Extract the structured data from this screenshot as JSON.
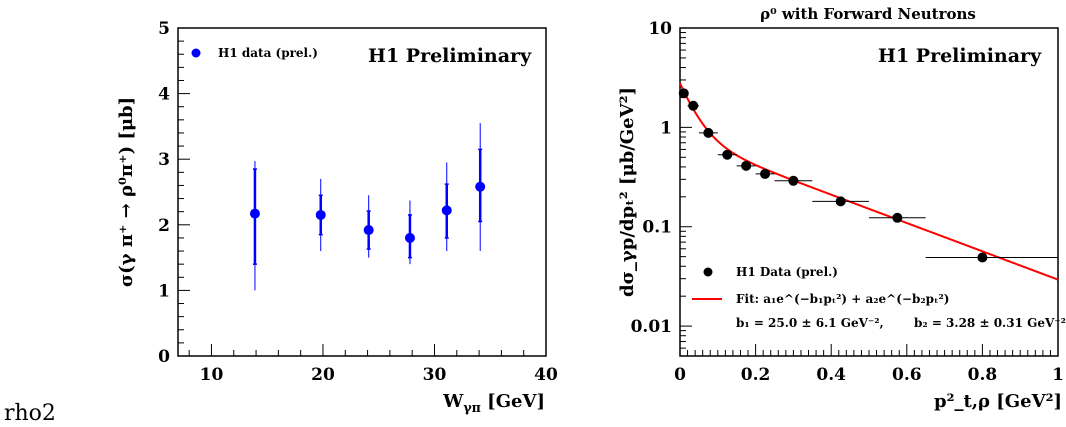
{
  "caption": "rho2",
  "charts": {
    "left": {
      "prelim_label": "H1 Preliminary",
      "legend_label": "H1 data (prel.)",
      "ylabel": "σ(γ π⁺ → ρ⁰π⁺) [μb]",
      "xlabel_main": "W",
      "xlabel_sub": "γπ",
      "xlabel_unit": " [GeV]",
      "xticks": [
        "10",
        "20",
        "30",
        "40"
      ],
      "yticks": [
        "0",
        "1",
        "2",
        "3",
        "4",
        "5"
      ],
      "marker_color": "#0000ff"
    },
    "right": {
      "title": "ρ⁰ with Forward Neutrons",
      "prelim_label": "H1 Preliminary",
      "legend_data_label": "H1 Data (prel.)",
      "legend_fit_label": "Fit: a₁e^(−b₁pₜ²) + a₂e^(−b₂pₜ²)",
      "fit_params_b1": "b₁ = 25.0 ± 6.1 GeV⁻²,",
      "fit_params_b2": "b₂ = 3.28 ± 0.31 GeV⁻²",
      "ylabel": "dσ_γp/dpₜ² [μb/GeV²]",
      "xlabel": "p²_t,ρ [GeV²]",
      "xticks": [
        "0",
        "0.2",
        "0.4",
        "0.6",
        "0.8",
        "1"
      ],
      "yticks": [
        "0.01",
        "0.1",
        "1",
        "10"
      ],
      "fit_color": "#ff0000"
    }
  },
  "chart_data": [
    {
      "type": "scatter",
      "xlim": [
        7,
        40
      ],
      "ylim": [
        0,
        5
      ],
      "points": [
        {
          "x": 13.9,
          "y": 2.17,
          "stat": [
            1.4,
            2.85
          ],
          "tot": [
            1.0,
            2.97
          ]
        },
        {
          "x": 19.8,
          "y": 2.15,
          "stat": [
            1.85,
            2.45
          ],
          "tot": [
            1.6,
            2.7
          ]
        },
        {
          "x": 24.1,
          "y": 1.92,
          "stat": [
            1.63,
            2.21
          ],
          "tot": [
            1.5,
            2.45
          ]
        },
        {
          "x": 27.8,
          "y": 1.8,
          "stat": [
            1.5,
            2.15
          ],
          "tot": [
            1.4,
            2.37
          ]
        },
        {
          "x": 31.1,
          "y": 2.22,
          "stat": [
            1.8,
            2.62
          ],
          "tot": [
            1.6,
            2.95
          ]
        },
        {
          "x": 34.1,
          "y": 2.58,
          "stat": [
            2.05,
            3.15
          ],
          "tot": [
            1.6,
            3.55
          ]
        }
      ]
    },
    {
      "type": "scatter",
      "xlim": [
        0,
        1
      ],
      "ylim": [
        0.005,
        10
      ],
      "log_y": true,
      "points": [
        {
          "x": 0.01,
          "y": 2.2,
          "xerr": [
            0.0,
            0.02
          ]
        },
        {
          "x": 0.035,
          "y": 1.65,
          "xerr": [
            0.02,
            0.05
          ]
        },
        {
          "x": 0.075,
          "y": 0.88,
          "xerr": [
            0.05,
            0.1
          ]
        },
        {
          "x": 0.125,
          "y": 0.53,
          "xerr": [
            0.1,
            0.15
          ]
        },
        {
          "x": 0.175,
          "y": 0.41,
          "xerr": [
            0.15,
            0.2
          ]
        },
        {
          "x": 0.225,
          "y": 0.34,
          "xerr": [
            0.2,
            0.25
          ]
        },
        {
          "x": 0.3,
          "y": 0.29,
          "xerr": [
            0.25,
            0.35
          ]
        },
        {
          "x": 0.425,
          "y": 0.18,
          "xerr": [
            0.35,
            0.5
          ]
        },
        {
          "x": 0.575,
          "y": 0.123,
          "xerr": [
            0.5,
            0.65
          ]
        },
        {
          "x": 0.8,
          "y": 0.049,
          "xerr": [
            0.65,
            1.0
          ]
        }
      ],
      "fit": {
        "a1": 2.0,
        "b1": 25.0,
        "a2": 0.78,
        "b2": 3.28
      }
    }
  ]
}
